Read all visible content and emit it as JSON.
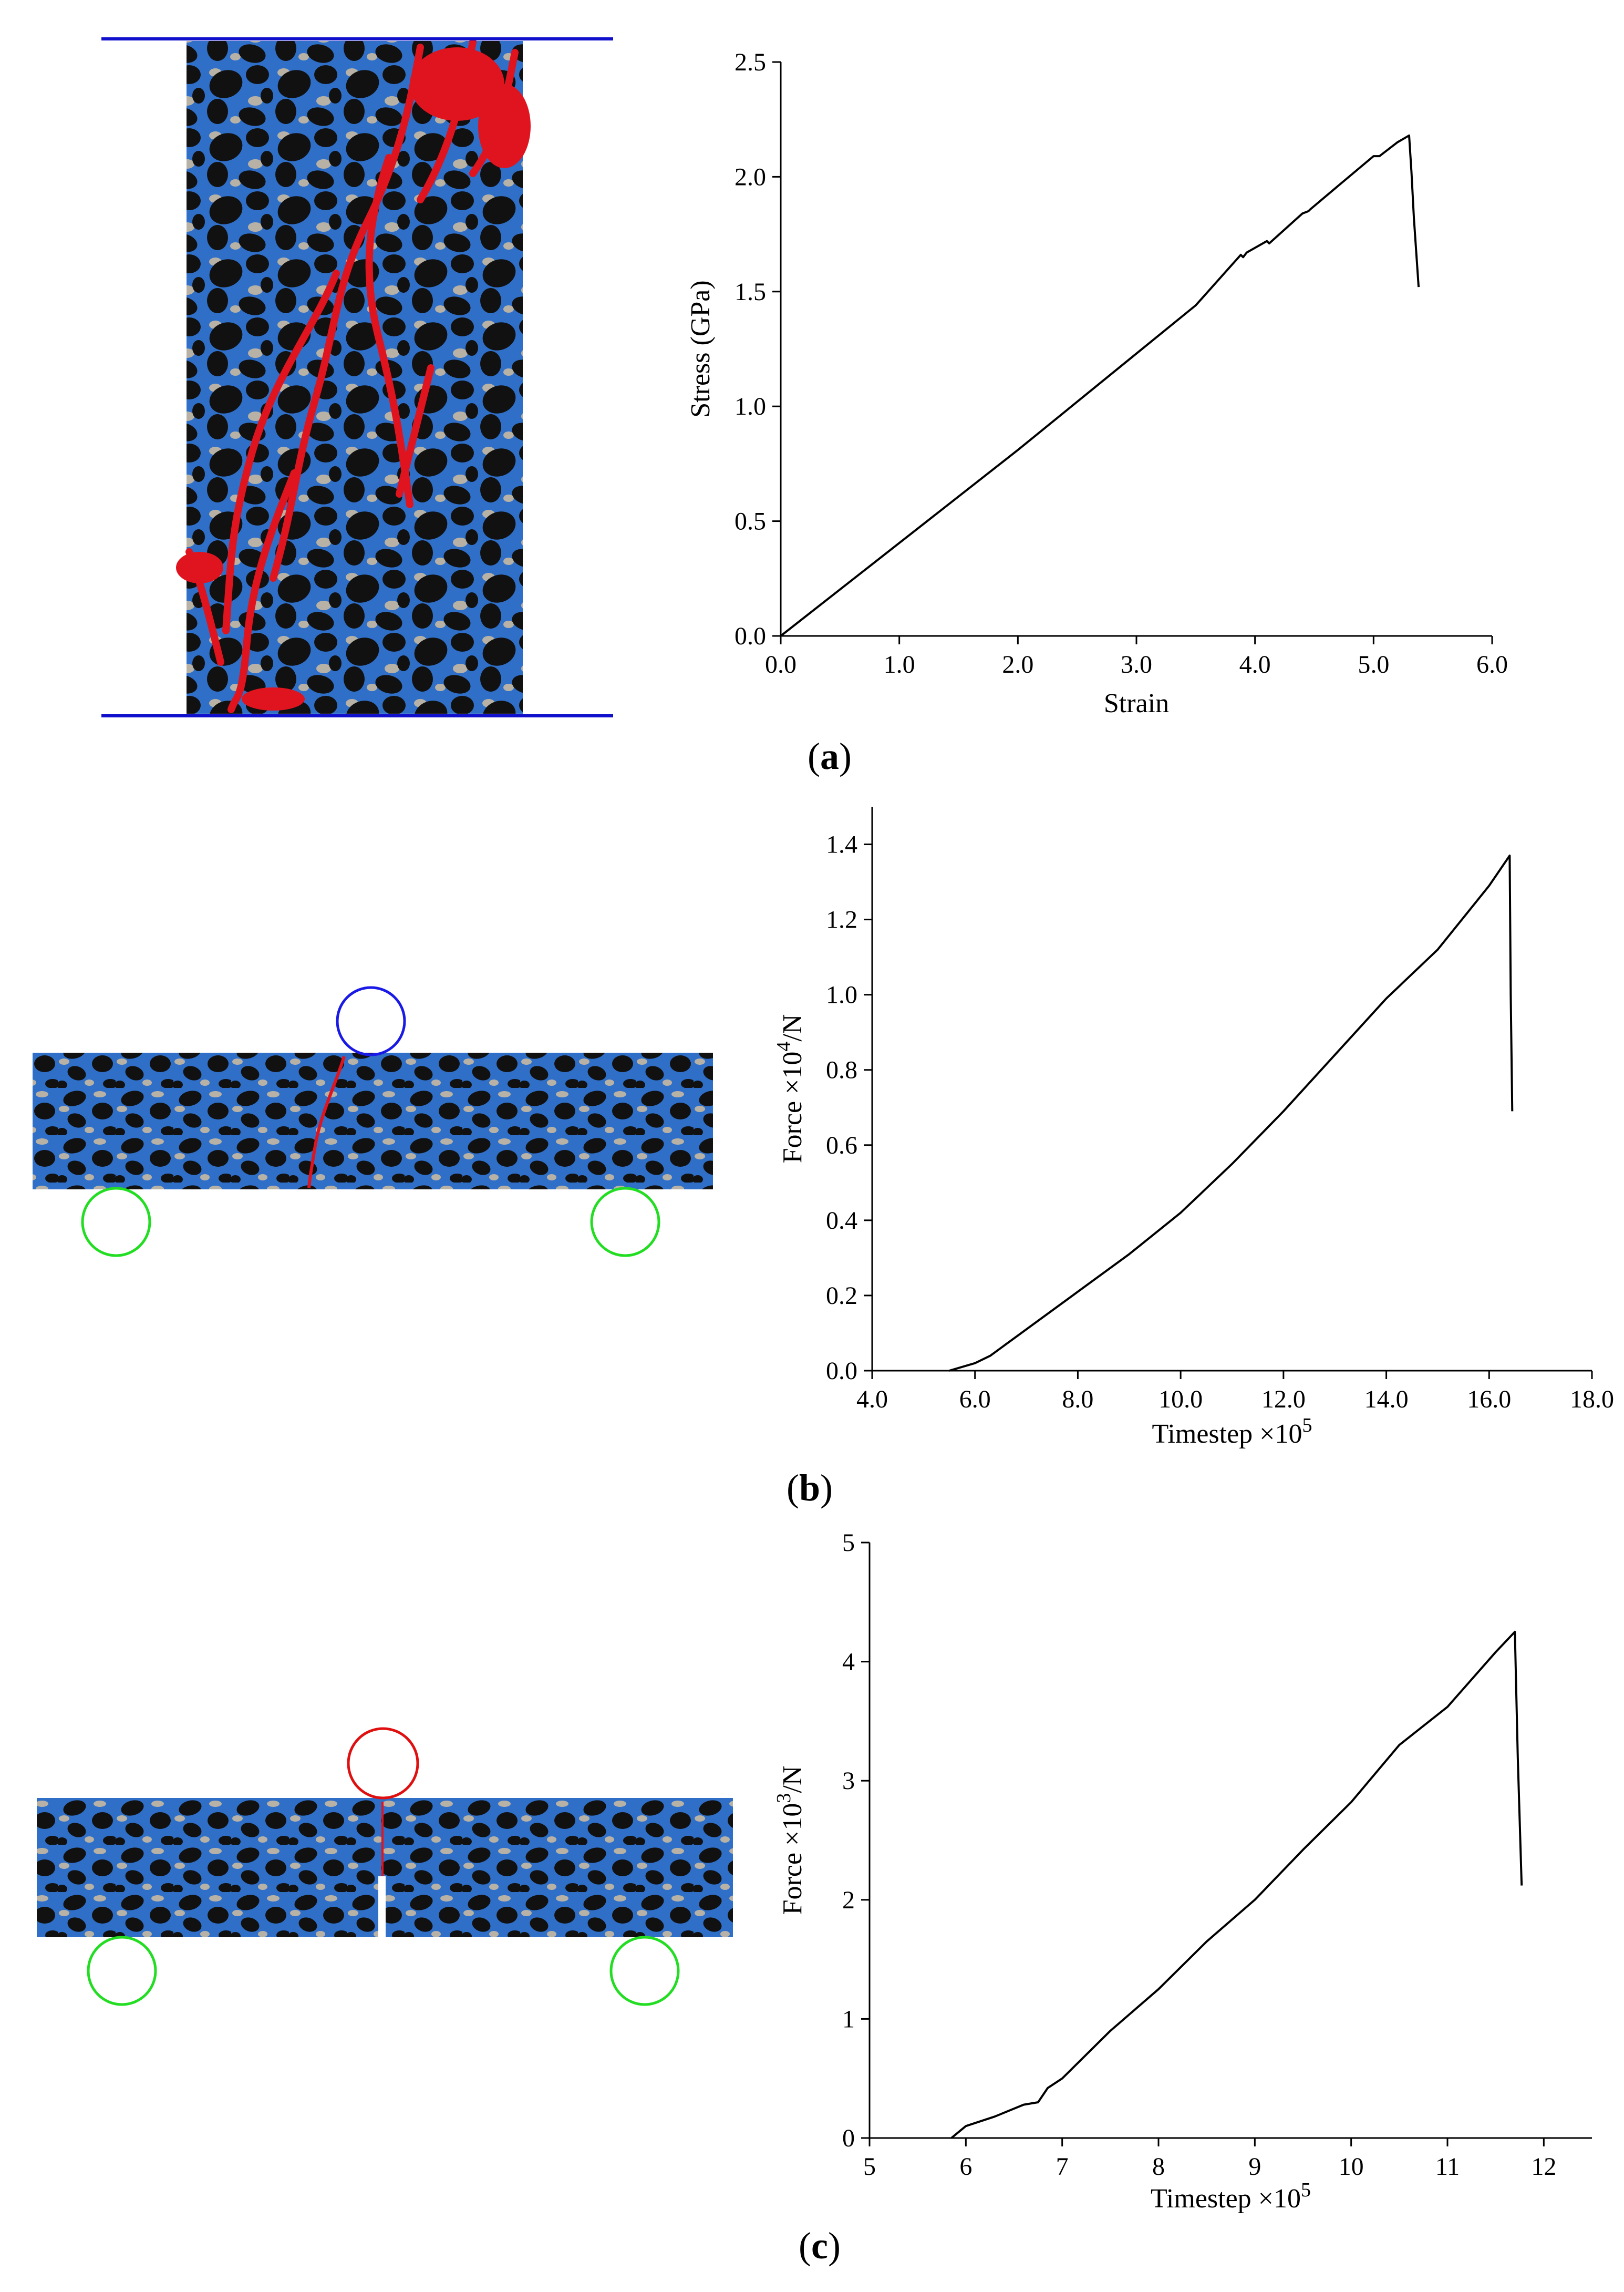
{
  "figure": {
    "panels": [
      {
        "label": "a",
        "specimen": "uniaxial-compression"
      },
      {
        "label": "b",
        "specimen": "three-point-bending"
      },
      {
        "label": "c",
        "specimen": "notched-three-point-bending"
      }
    ]
  },
  "colors": {
    "matrix_blue": "#2f6fc8",
    "aggregate_black": "#111111",
    "pore_gray": "#b8b2a6",
    "crack_red": "#e0141e",
    "platen_blue": "#1010cc",
    "loader_blue": "#1a1ae6",
    "loader_red": "#e01010",
    "support_green": "#22dd22",
    "curve": "#000000"
  },
  "chart_data": [
    {
      "type": "line",
      "panel": "a",
      "title": "",
      "xlabel": "Strain",
      "ylabel": "Stress  (GPa)",
      "xlim": [
        0.0,
        6.0
      ],
      "ylim": [
        0.0,
        2.5
      ],
      "xticks": [
        0.0,
        1.0,
        2.0,
        3.0,
        4.0,
        5.0,
        6.0
      ],
      "yticks": [
        0.0,
        0.5,
        1.0,
        1.5,
        2.0,
        2.5
      ],
      "xtick_labels": [
        "0.0",
        "1.0",
        "2.0",
        "3.0",
        "4.0",
        "5.0",
        "6.0"
      ],
      "ytick_labels": [
        "0.0",
        "0.5",
        "1.0",
        "1.5",
        "2.0",
        "2.5"
      ],
      "series": [
        {
          "name": "stress-strain",
          "x": [
            0.0,
            1.0,
            2.0,
            3.0,
            3.5,
            3.88,
            3.9,
            3.93,
            4.1,
            4.12,
            4.4,
            4.45,
            4.47,
            4.7,
            5.0,
            5.05,
            5.2,
            5.3,
            5.32,
            5.34,
            5.38
          ],
          "y": [
            0.0,
            0.405,
            0.81,
            1.23,
            1.44,
            1.66,
            1.65,
            1.67,
            1.72,
            1.71,
            1.84,
            1.85,
            1.86,
            1.96,
            2.09,
            2.09,
            2.15,
            2.18,
            2.02,
            1.82,
            1.52
          ]
        }
      ]
    },
    {
      "type": "line",
      "panel": "b",
      "title": "",
      "xlabel": "Timestep ×10",
      "xlabel_exp": "5",
      "ylabel": "Force ×10",
      "ylabel_exp": "4",
      "ylabel_suffix": "/N",
      "xlim": [
        4.0,
        18.0
      ],
      "ylim": [
        0.0,
        1.5
      ],
      "xticks": [
        4.0,
        6.0,
        8.0,
        10.0,
        12.0,
        14.0,
        16.0,
        18.0
      ],
      "yticks": [
        0.0,
        0.2,
        0.4,
        0.6,
        0.8,
        1.0,
        1.2,
        1.4
      ],
      "xtick_labels": [
        "4.0",
        "6.0",
        "8.0",
        "10.0",
        "12.0",
        "14.0",
        "16.0",
        "18.0"
      ],
      "ytick_labels": [
        "0.0",
        "0.2",
        "0.4",
        "0.6",
        "0.8",
        "1.0",
        "1.2",
        "1.4"
      ],
      "series": [
        {
          "name": "force-timestep",
          "x": [
            5.5,
            6.0,
            6.3,
            6.6,
            7.0,
            8.0,
            9.0,
            10.0,
            11.0,
            12.0,
            13.0,
            14.0,
            15.0,
            16.0,
            16.4,
            16.42,
            16.45
          ],
          "y": [
            0.0,
            0.02,
            0.04,
            0.07,
            0.11,
            0.21,
            0.31,
            0.42,
            0.55,
            0.69,
            0.84,
            0.99,
            1.12,
            1.29,
            1.37,
            1.0,
            0.69
          ]
        }
      ]
    },
    {
      "type": "line",
      "panel": "c",
      "title": "",
      "xlabel": "Timestep ×10",
      "xlabel_exp": "5",
      "ylabel": "Force ×10",
      "ylabel_exp": "3",
      "ylabel_suffix": "/N",
      "xlim": [
        5,
        12.5
      ],
      "ylim": [
        0,
        5
      ],
      "xticks": [
        5,
        6,
        7,
        8,
        9,
        10,
        11,
        12
      ],
      "yticks": [
        0,
        1,
        2,
        3,
        4,
        5
      ],
      "xtick_labels": [
        "5",
        "6",
        "7",
        "8",
        "9",
        "10",
        "11",
        "12"
      ],
      "ytick_labels": [
        "0",
        "1",
        "2",
        "3",
        "4",
        "5"
      ],
      "series": [
        {
          "name": "force-timestep",
          "x": [
            5.85,
            6.0,
            6.3,
            6.6,
            6.75,
            6.85,
            7.0,
            7.5,
            8.0,
            8.5,
            9.0,
            9.5,
            10.0,
            10.5,
            11.0,
            11.5,
            11.7,
            11.73,
            11.77
          ],
          "y": [
            0.0,
            0.1,
            0.18,
            0.28,
            0.3,
            0.42,
            0.5,
            0.9,
            1.25,
            1.65,
            2.0,
            2.42,
            2.82,
            3.3,
            3.62,
            4.08,
            4.25,
            3.2,
            2.12
          ]
        }
      ]
    }
  ]
}
